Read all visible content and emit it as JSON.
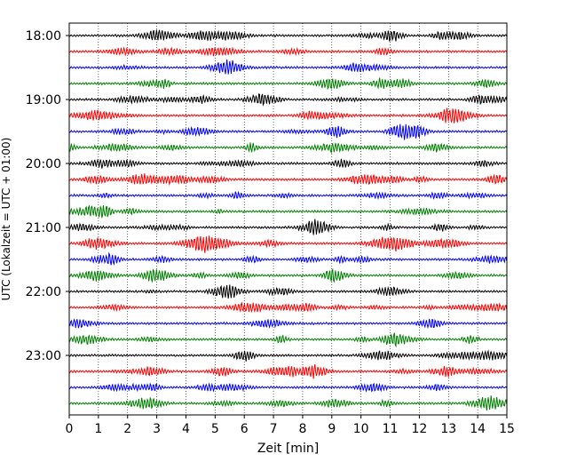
{
  "chart_data": {
    "type": "line",
    "title": "",
    "xlabel": "Zeit  [min]",
    "ylabel": "UTC (Lokalzeit = UTC + 01:00)",
    "xlim": [
      0,
      15
    ],
    "x_ticks": [
      "0",
      "1",
      "2",
      "3",
      "4",
      "5",
      "6",
      "7",
      "8",
      "9",
      "10",
      "11",
      "12",
      "13",
      "14",
      "15"
    ],
    "y_ticks": [
      "18:00",
      "19:00",
      "20:00",
      "21:00",
      "22:00",
      "23:00"
    ],
    "grid": "vertical dotted",
    "trace_minutes": 15,
    "trace_count": 24,
    "trace_colors": [
      "#000000",
      "#ff0000",
      "#0000ff",
      "#008000"
    ]
  }
}
